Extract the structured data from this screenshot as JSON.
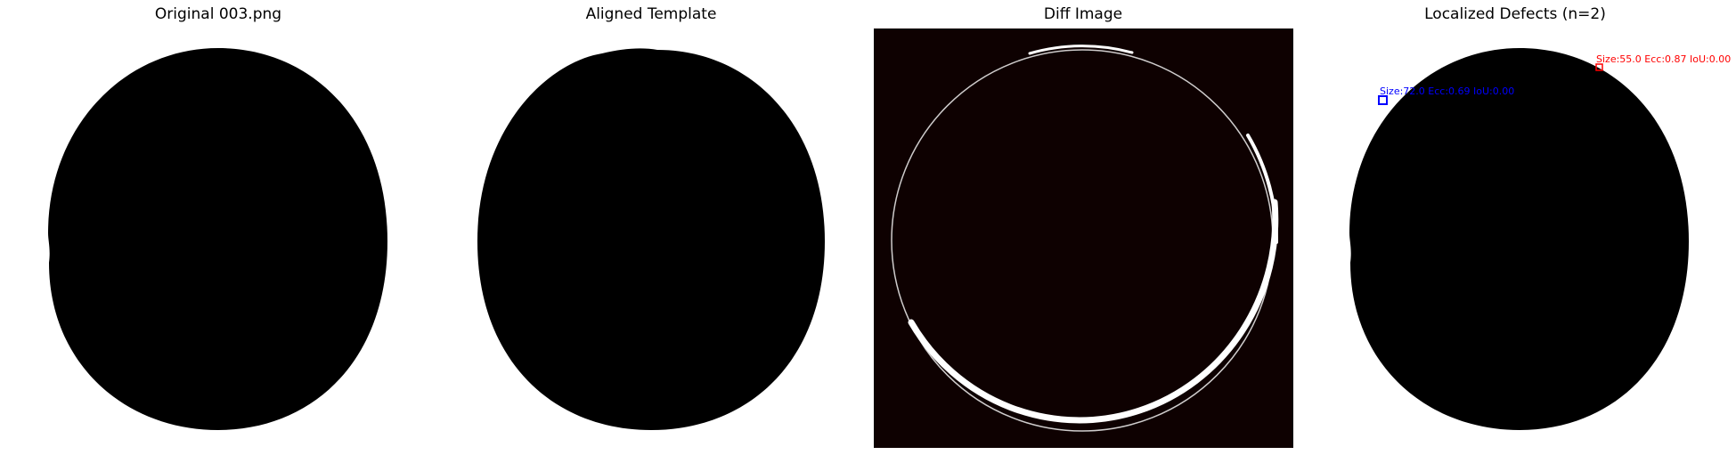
{
  "panels": [
    {
      "title": "Original 003.png"
    },
    {
      "title": "Aligned Template"
    },
    {
      "title": "Diff Image"
    },
    {
      "title": "Localized Defects (n=2)"
    }
  ],
  "defects": [
    {
      "label": "Size:55.0 Ecc:0.87 IoU:0.00",
      "color": "#ff0000"
    },
    {
      "label": "Size:72.0 Ecc:0.69 IoU:0.00",
      "color": "#0000ff"
    }
  ],
  "colors": {
    "disc": "#000000",
    "diff_background": "#0e0101",
    "diff_ring": "#ffffff"
  }
}
